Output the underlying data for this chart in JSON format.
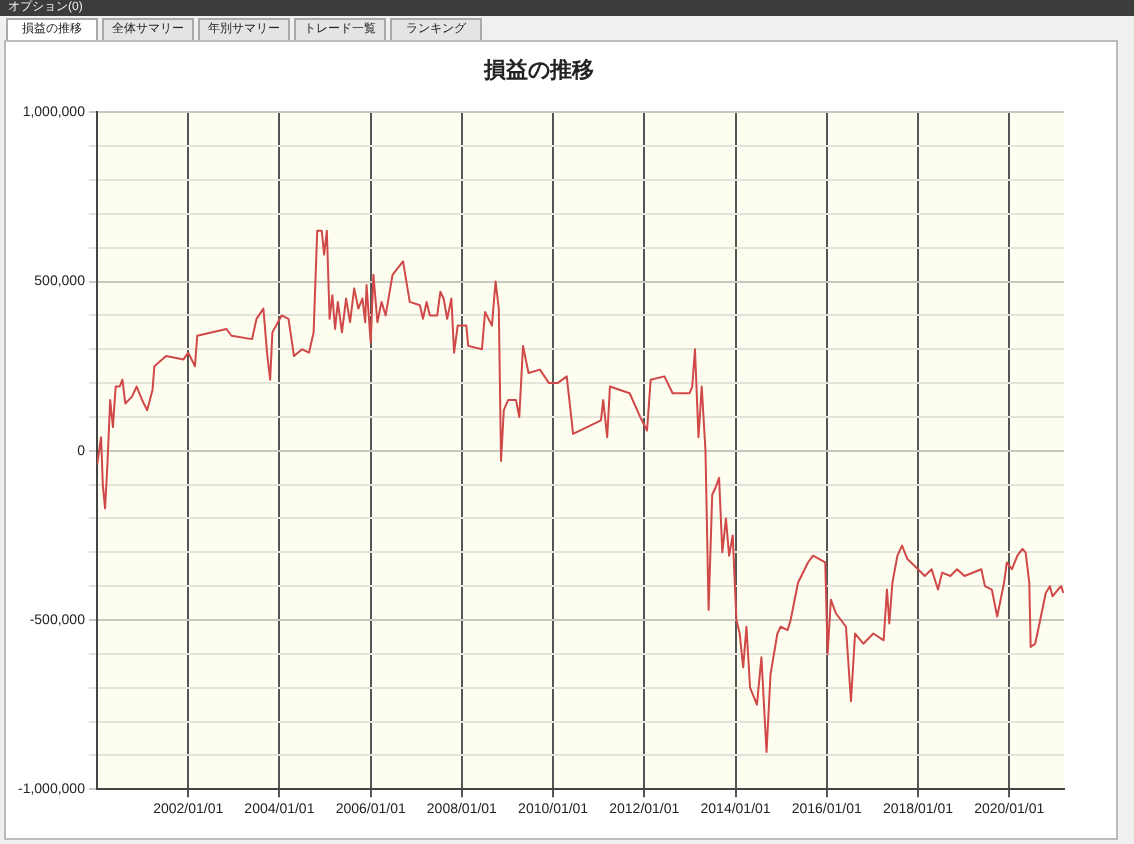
{
  "chart_data": {
    "type": "line",
    "title": "損益の推移",
    "annotations": [
      "オプション(0)",
      "損益の推移",
      "全体サマリー",
      "年別サマリー",
      "トレード一覧",
      "ランキング"
    ],
    "color": "#d04848",
    "grid": true,
    "xlim": [
      "2000-01-01",
      "2021-03-15"
    ],
    "xticks": [
      {
        "value": "2002-01-01",
        "label": "2002/01/01"
      },
      {
        "value": "2004-01-01",
        "label": "2004/01/01"
      },
      {
        "value": "2006-01-01",
        "label": "2006/01/01"
      },
      {
        "value": "2008-01-01",
        "label": "2008/01/01"
      },
      {
        "value": "2010-01-01",
        "label": "2010/01/01"
      },
      {
        "value": "2012-01-01",
        "label": "2012/01/01"
      },
      {
        "value": "2014-01-01",
        "label": "2014/01/01"
      },
      {
        "value": "2016-01-01",
        "label": "2016/01/01"
      },
      {
        "value": "2018-01-01",
        "label": "2018/01/01"
      },
      {
        "value": "2020-01-01",
        "label": "2020/01/01"
      }
    ],
    "ylim": [
      -1000000,
      1000000
    ],
    "yticks": [
      {
        "value": -1000000,
        "label": "-1,000,000"
      },
      {
        "value": -900000,
        "label": null
      },
      {
        "value": -800000,
        "label": null
      },
      {
        "value": -700000,
        "label": null
      },
      {
        "value": -600000,
        "label": null
      },
      {
        "value": -500000,
        "label": "-500,000"
      },
      {
        "value": -400000,
        "label": null
      },
      {
        "value": -300000,
        "label": null
      },
      {
        "value": -200000,
        "label": null
      },
      {
        "value": -100000,
        "label": null
      },
      0,
      {
        "value": 100000,
        "label": null
      },
      {
        "value": 200000,
        "label": null
      },
      {
        "value": 300000,
        "label": null
      },
      {
        "value": 400000,
        "label": null
      },
      {
        "value": 500000,
        "label": "500,000"
      },
      {
        "value": 600000,
        "label": null
      },
      {
        "value": 700000,
        "label": null
      },
      {
        "value": 800000,
        "label": null
      },
      {
        "value": 900000,
        "label": null
      },
      {
        "value": 1000000,
        "label": "1,000,000"
      }
    ],
    "x": [
      "2000-01-03",
      "2000-02-03",
      "2000-02-17",
      "2000-03-06",
      "2000-03-25",
      "2000-04-16",
      "2000-05-08",
      "2000-05-30",
      "2000-07-01",
      "2000-07-23",
      "2000-08-15",
      "2000-10-08",
      "2000-11-14",
      "2000-12-28",
      "2001-02-06",
      "2001-03-21",
      "2001-04-05",
      "2001-07-08",
      "2001-11-24",
      "2002-01-01",
      "2002-02-24",
      "2002-03-14",
      "2002-11-03",
      "2002-12-13",
      "2003-05-27",
      "2003-07-02",
      "2003-08-26",
      "2003-09-24",
      "2003-10-19",
      "2003-11-06",
      "2004-01-19",
      "2004-03-14",
      "2004-04-27",
      "2004-07-01",
      "2004-08-25",
      "2004-10-01",
      "2004-10-30",
      "2004-12-05",
      "2004-12-24",
      "2005-01-15",
      "2005-02-06",
      "2005-02-28",
      "2005-03-22",
      "2005-04-13",
      "2005-05-16",
      "2005-06-18",
      "2005-07-20",
      "2005-08-22",
      "2005-09-24",
      "2005-10-27",
      "2005-11-18",
      "2005-11-29",
      "2006-01-01",
      "2006-01-23",
      "2006-02-24",
      "2006-03-29",
      "2006-05-01",
      "2006-06-25",
      "2006-09-17",
      "2006-11-10",
      "2007-01-30",
      "2007-02-24",
      "2007-03-25",
      "2007-04-20",
      "2007-06-18",
      "2007-07-13",
      "2007-08-08",
      "2007-09-06",
      "2007-10-09",
      "2007-10-31",
      "2007-11-29",
      "2008-02-06",
      "2008-02-21",
      "2008-06-10",
      "2008-07-05",
      "2008-08-29",
      "2008-09-27",
      "2008-10-23",
      "2008-11-10",
      "2008-12-02",
      "2009-01-05",
      "2009-03-10",
      "2009-04-05",
      "2009-05-05",
      "2009-06-18",
      "2009-09-17",
      "2009-11-29",
      "2010-02-06",
      "2010-04-20",
      "2010-06-10",
      "2011-01-19",
      "2011-02-06",
      "2011-03-10",
      "2011-04-01",
      "2011-09-06",
      "2011-11-29",
      "2012-01-23",
      "2012-02-21",
      "2012-06-10",
      "2012-08-15",
      "2012-12-28",
      "2013-01-19",
      "2013-02-10",
      "2013-03-10",
      "2013-04-05",
      "2013-05-05",
      "2013-05-30",
      "2013-06-28",
      "2013-07-23",
      "2013-08-22",
      "2013-09-17",
      "2013-10-16",
      "2013-11-10",
      "2013-12-09",
      "2014-01-08",
      "2014-02-03",
      "2014-03-03",
      "2014-03-29",
      "2014-04-27",
      "2014-06-21",
      "2014-07-27",
      "2014-09-06",
      "2014-10-08",
      "2014-12-02",
      "2014-12-28",
      "2015-02-21",
      "2015-03-18",
      "2015-05-16",
      "2015-08-04",
      "2015-09-13",
      "2015-12-20",
      "2016-01-08",
      "2016-02-03",
      "2016-03-14",
      "2016-06-03",
      "2016-07-13",
      "2016-08-15",
      "2016-10-20",
      "2017-01-08",
      "2017-04-01",
      "2017-04-27",
      "2017-05-16",
      "2017-06-10",
      "2017-07-20",
      "2017-08-26",
      "2017-10-08",
      "2018-01-01",
      "2018-02-24",
      "2018-04-20",
      "2018-06-10",
      "2018-07-13",
      "2018-09-17",
      "2018-11-10",
      "2019-01-08",
      "2019-05-23",
      "2019-06-21",
      "2019-08-15",
      "2019-09-27",
      "2019-11-21",
      "2019-12-13",
      "2020-01-23",
      "2020-03-07",
      "2020-04-16",
      "2020-05-12",
      "2020-06-10",
      "2020-06-21",
      "2020-07-27",
      "2020-08-25",
      "2020-10-20",
      "2020-11-22",
      "2020-12-13",
      "2021-01-26",
      "2021-02-20",
      "2021-03-10"
    ],
    "values": [
      -40000,
      40000,
      -100000,
      -170000,
      -40000,
      150000,
      70000,
      190000,
      190000,
      210000,
      140000,
      160000,
      190000,
      150000,
      120000,
      180000,
      250000,
      280000,
      270000,
      290000,
      250000,
      340000,
      360000,
      340000,
      330000,
      390000,
      420000,
      290000,
      210000,
      350000,
      400000,
      390000,
      280000,
      300000,
      290000,
      350000,
      650000,
      650000,
      580000,
      650000,
      390000,
      460000,
      360000,
      440000,
      350000,
      450000,
      380000,
      480000,
      420000,
      450000,
      380000,
      490000,
      320000,
      520000,
      380000,
      440000,
      400000,
      520000,
      560000,
      440000,
      430000,
      390000,
      440000,
      400000,
      400000,
      470000,
      450000,
      390000,
      450000,
      290000,
      370000,
      370000,
      310000,
      300000,
      410000,
      370000,
      500000,
      420000,
      -30000,
      120000,
      150000,
      150000,
      100000,
      310000,
      230000,
      240000,
      200000,
      200000,
      220000,
      50000,
      90000,
      150000,
      40000,
      190000,
      170000,
      100000,
      60000,
      210000,
      220000,
      170000,
      170000,
      190000,
      300000,
      40000,
      190000,
      0,
      -470000,
      -130000,
      -110000,
      -80000,
      -300000,
      -200000,
      -310000,
      -250000,
      -500000,
      -540000,
      -640000,
      -520000,
      -700000,
      -750000,
      -610000,
      -890000,
      -660000,
      -540000,
      -520000,
      -530000,
      -500000,
      -390000,
      -330000,
      -310000,
      -330000,
      -600000,
      -440000,
      -480000,
      -520000,
      -740000,
      -540000,
      -570000,
      -540000,
      -560000,
      -410000,
      -510000,
      -390000,
      -310000,
      -280000,
      -320000,
      -350000,
      -370000,
      -350000,
      -410000,
      -360000,
      -370000,
      -350000,
      -370000,
      -350000,
      -400000,
      -410000,
      -490000,
      -390000,
      -330000,
      -350000,
      -310000,
      -290000,
      -300000,
      -390000,
      -580000,
      -570000,
      -520000,
      -420000,
      -400000,
      -430000,
      -410000,
      -400000,
      -420000
    ]
  }
}
